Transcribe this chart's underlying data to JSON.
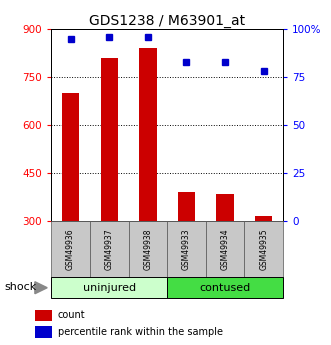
{
  "title": "GDS1238 / M63901_at",
  "categories": [
    "GSM49936",
    "GSM49937",
    "GSM49938",
    "GSM49933",
    "GSM49934",
    "GSM49935"
  ],
  "counts": [
    700,
    810,
    840,
    390,
    385,
    315
  ],
  "percentiles": [
    95,
    96,
    96,
    83,
    83,
    78
  ],
  "ylim_left": [
    300,
    900
  ],
  "ylim_right": [
    0,
    100
  ],
  "yticks_left": [
    300,
    450,
    600,
    750,
    900
  ],
  "yticks_right": [
    0,
    25,
    50,
    75,
    100
  ],
  "ytick_labels_right": [
    "0",
    "25",
    "50",
    "75",
    "100%"
  ],
  "bar_color": "#cc0000",
  "dot_color": "#0000cc",
  "group_labels": [
    "uninjured",
    "contused"
  ],
  "uninjured_color": "#ccffcc",
  "contused_color": "#44dd44",
  "shock_label": "shock",
  "legend_count": "count",
  "legend_pct": "percentile rank within the sample",
  "bar_bottom": 300
}
